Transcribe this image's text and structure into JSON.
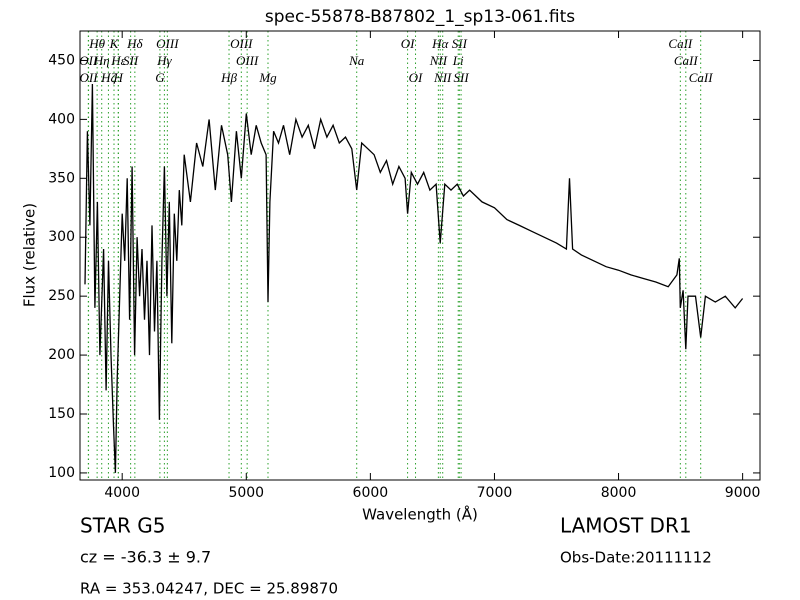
{
  "chart_data": {
    "type": "line",
    "title": "spec-55878-B87802_1_sp13-061.fits",
    "xlabel": "Wavelength (Å)",
    "ylabel": "Flux (relative)",
    "xlim": [
      3660,
      9140
    ],
    "ylim": [
      94,
      475
    ],
    "xticks": [
      4000,
      5000,
      6000,
      7000,
      8000,
      9000
    ],
    "yticks": [
      100,
      150,
      200,
      250,
      300,
      350,
      400,
      450
    ],
    "series": [
      {
        "color": "#000000",
        "x": [
          3700,
          3720,
          3740,
          3760,
          3780,
          3800,
          3820,
          3850,
          3870,
          3890,
          3910,
          3930,
          3945,
          3960,
          3980,
          4000,
          4020,
          4040,
          4060,
          4080,
          4100,
          4120,
          4140,
          4160,
          4180,
          4200,
          4220,
          4240,
          4260,
          4280,
          4300,
          4320,
          4340,
          4360,
          4380,
          4400,
          4420,
          4440,
          4460,
          4480,
          4500,
          4550,
          4600,
          4650,
          4700,
          4750,
          4800,
          4850,
          4880,
          4920,
          4960,
          5000,
          5040,
          5080,
          5120,
          5160,
          5175,
          5190,
          5220,
          5260,
          5300,
          5350,
          5400,
          5450,
          5500,
          5550,
          5600,
          5650,
          5700,
          5750,
          5800,
          5850,
          5890,
          5930,
          5980,
          6030,
          6080,
          6130,
          6180,
          6230,
          6280,
          6300,
          6330,
          6380,
          6430,
          6480,
          6530,
          6563,
          6600,
          6650,
          6700,
          6750,
          6800,
          6900,
          7000,
          7100,
          7200,
          7300,
          7400,
          7500,
          7580,
          7605,
          7630,
          7700,
          7800,
          7900,
          8000,
          8100,
          8200,
          8300,
          8400,
          8470,
          8490,
          8498,
          8520,
          8542,
          8560,
          8620,
          8662,
          8700,
          8780,
          8860,
          8940,
          9000
        ],
        "values": [
          260,
          390,
          310,
          430,
          240,
          330,
          200,
          290,
          170,
          280,
          200,
          140,
          100,
          180,
          250,
          320,
          280,
          350,
          230,
          360,
          200,
          300,
          250,
          290,
          230,
          280,
          200,
          310,
          220,
          280,
          145,
          280,
          360,
          250,
          330,
          210,
          320,
          280,
          340,
          310,
          370,
          330,
          380,
          360,
          400,
          340,
          395,
          370,
          330,
          390,
          350,
          405,
          370,
          395,
          380,
          370,
          245,
          330,
          390,
          380,
          395,
          370,
          400,
          385,
          395,
          375,
          400,
          385,
          395,
          380,
          385,
          375,
          340,
          380,
          375,
          370,
          355,
          365,
          345,
          360,
          350,
          320,
          355,
          345,
          355,
          340,
          345,
          295,
          345,
          340,
          345,
          335,
          340,
          330,
          325,
          315,
          310,
          305,
          300,
          295,
          290,
          350,
          290,
          285,
          280,
          275,
          272,
          268,
          265,
          262,
          258,
          268,
          282,
          240,
          255,
          205,
          250,
          250,
          215,
          250,
          245,
          250,
          240,
          248
        ]
      }
    ],
    "lines": [
      {
        "label": "Hθ",
        "x": 3798
      },
      {
        "label": "K",
        "x": 3934
      },
      {
        "label": "Hδ",
        "x": 4102
      },
      {
        "label": "OIII",
        "x": 4364
      },
      {
        "label": "OIII",
        "x": 4960
      },
      {
        "label": "OI",
        "x": 6300
      },
      {
        "label": "Hα",
        "x": 6563
      },
      {
        "label": "SII",
        "x": 6717
      },
      {
        "label": "CaII",
        "x": 8498
      },
      {
        "label": "OII",
        "x": 3727
      },
      {
        "label": "Hη",
        "x": 3835
      },
      {
        "label": "Hε",
        "x": 3970
      },
      {
        "label": "SII",
        "x": 4068
      },
      {
        "label": "Hγ",
        "x": 4340
      },
      {
        "label": "OIII",
        "x": 5007
      },
      {
        "label": "Na",
        "x": 5890
      },
      {
        "label": "NII",
        "x": 6548
      },
      {
        "label": "Li",
        "x": 6708
      },
      {
        "label": "CaII",
        "x": 8542
      },
      {
        "label": "OII",
        "x": 3729
      },
      {
        "label": "Hζ",
        "x": 3889
      },
      {
        "label": "H",
        "x": 3968
      },
      {
        "label": "G",
        "x": 4304
      },
      {
        "label": "Hβ",
        "x": 4861
      },
      {
        "label": "Mg",
        "x": 5175
      },
      {
        "label": "OI",
        "x": 6364
      },
      {
        "label": "NII",
        "x": 6583
      },
      {
        "label": "SII",
        "x": 6731
      },
      {
        "label": "CaII",
        "x": 8662
      }
    ],
    "object": "STAR   G5",
    "redshift": "cz = -36.3 ± 9.7",
    "coords": "RA = 353.04247, DEC = 25.89870",
    "survey": "LAMOST DR1",
    "obs_date": "Obs-Date:20111112"
  }
}
